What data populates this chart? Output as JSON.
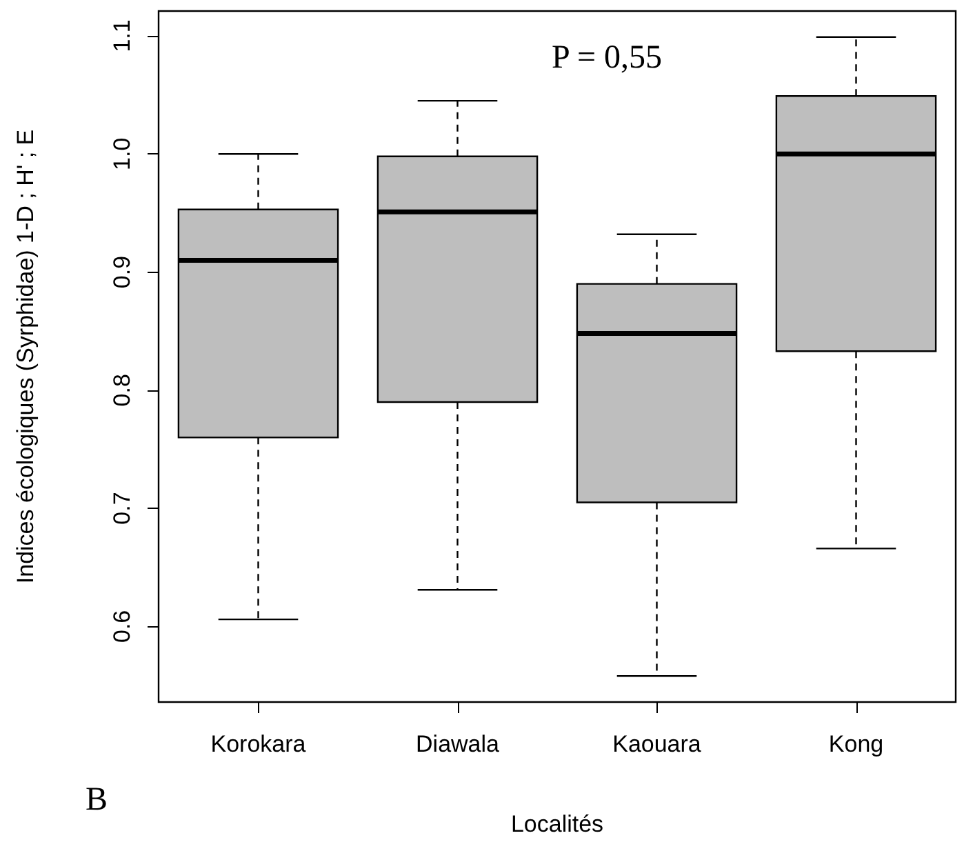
{
  "chart_data": {
    "type": "box",
    "xlabel": "Localités",
    "ylabel": "Indices écologiques (Syrphidae) 1-D ; H' ; E",
    "categories": [
      "Korokara",
      "Diawala",
      "Kaouara",
      "Kong"
    ],
    "boxes": [
      {
        "low": 0.606,
        "q1": 0.76,
        "median": 0.91,
        "q3": 0.953,
        "high": 1.0
      },
      {
        "low": 0.631,
        "q1": 0.79,
        "median": 0.951,
        "q3": 0.998,
        "high": 1.045
      },
      {
        "low": 0.558,
        "q1": 0.705,
        "median": 0.848,
        "q3": 0.89,
        "high": 0.932
      },
      {
        "low": 0.666,
        "q1": 0.833,
        "median": 1.0,
        "q3": 1.049,
        "high": 1.099
      }
    ],
    "color": "#bebebe",
    "ylim": [
      0.536,
      1.121
    ],
    "yticks": [
      {
        "value": 0.6,
        "label": "0.6"
      },
      {
        "value": 0.7,
        "label": "0.7"
      },
      {
        "value": 0.8,
        "label": "0.8"
      },
      {
        "value": 0.9,
        "label": "0.9"
      },
      {
        "value": 1.0,
        "label": "1.0"
      },
      {
        "value": 1.1,
        "label": "1.1"
      }
    ],
    "annotations": [
      "P = 0,55",
      "B"
    ]
  }
}
